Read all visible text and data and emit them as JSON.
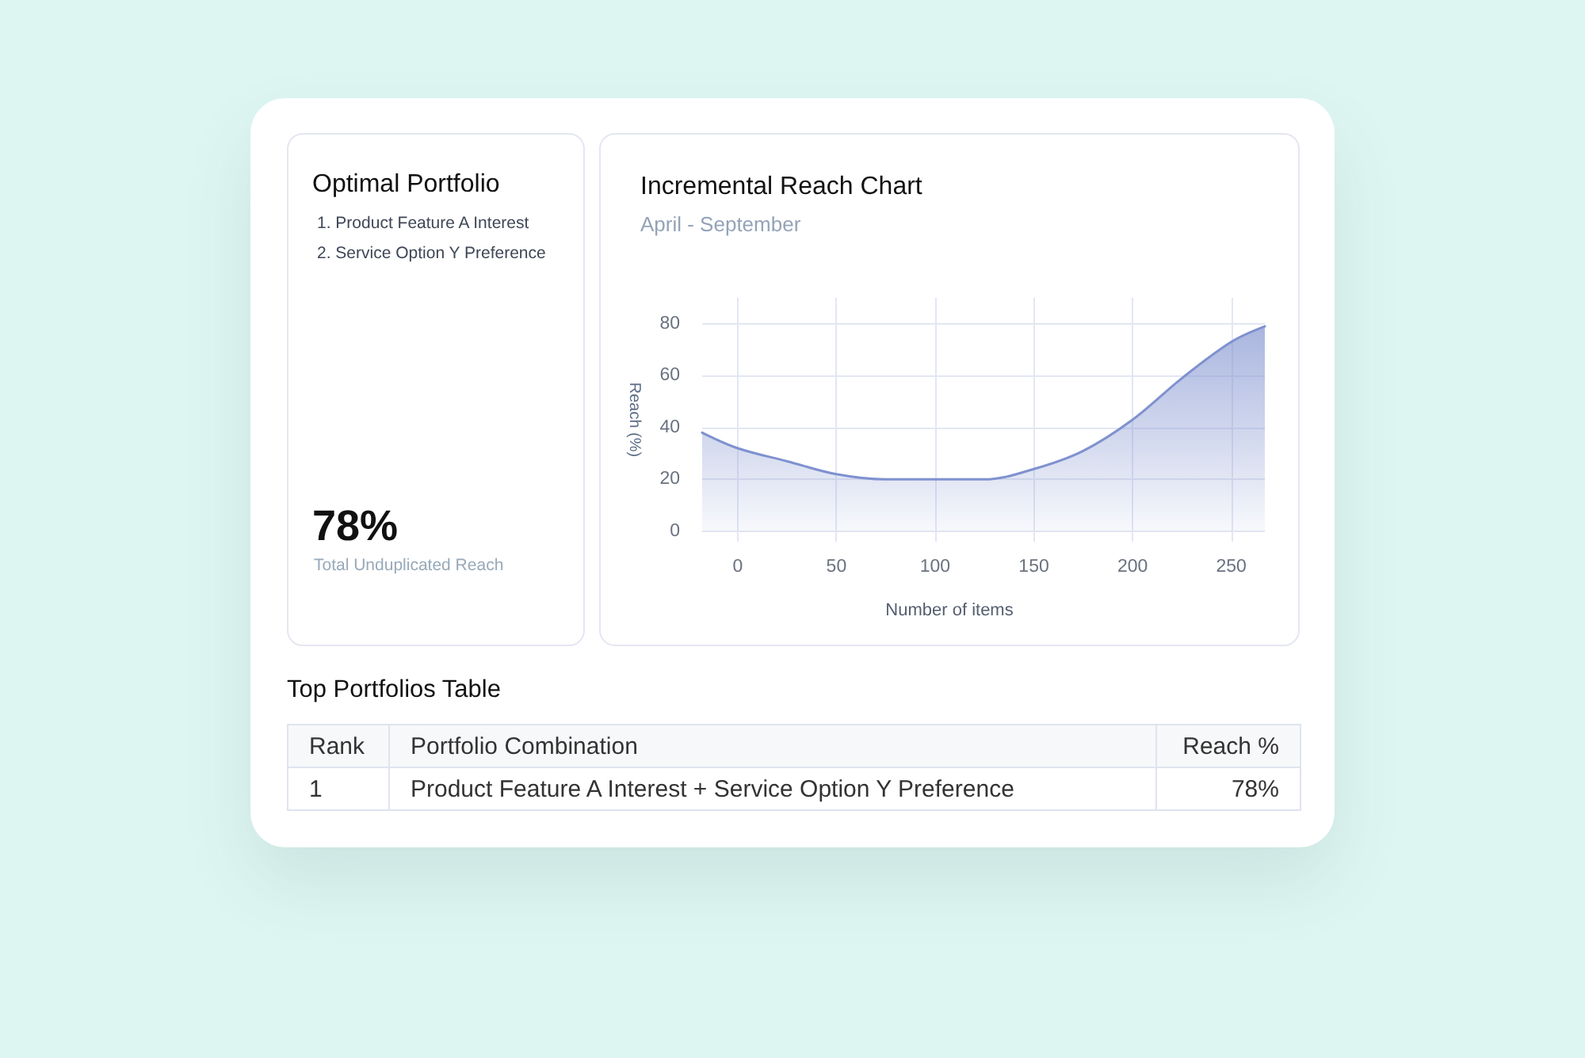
{
  "chart_data": [
    {
      "type": "other",
      "title": "Optimal Portfolio",
      "annotations": [
        "1. Product Feature A Interest",
        "2. Service Option Y Preference",
        "78%",
        "Total Unduplicated Reach"
      ]
    },
    {
      "type": "area",
      "title": "Incremental Reach Chart",
      "subtitle": "April - September",
      "xlabel": "Number of items",
      "ylabel": "Reach (%)",
      "x": [
        -18,
        0,
        25,
        50,
        75,
        100,
        125,
        150,
        175,
        200,
        225,
        250,
        267
      ],
      "values": [
        38,
        32,
        27,
        22,
        20,
        20,
        20,
        24,
        31,
        43,
        59,
        73,
        79
      ],
      "color": "#7f91cf",
      "xlim": [
        -18,
        267
      ],
      "ylim": [
        -4,
        90
      ],
      "xticks": [
        0,
        50,
        100,
        150,
        200,
        250
      ],
      "yticks": [
        0,
        20,
        40,
        60,
        80
      ],
      "grid": true
    },
    {
      "type": "other",
      "title": "Top Portfolios Table",
      "categories": [
        "Rank",
        "Portfolio Combination",
        "Reach %"
      ],
      "annotations": [
        "1",
        "Product Feature A Interest + Service Option Y Preference",
        "78%"
      ]
    }
  ]
}
